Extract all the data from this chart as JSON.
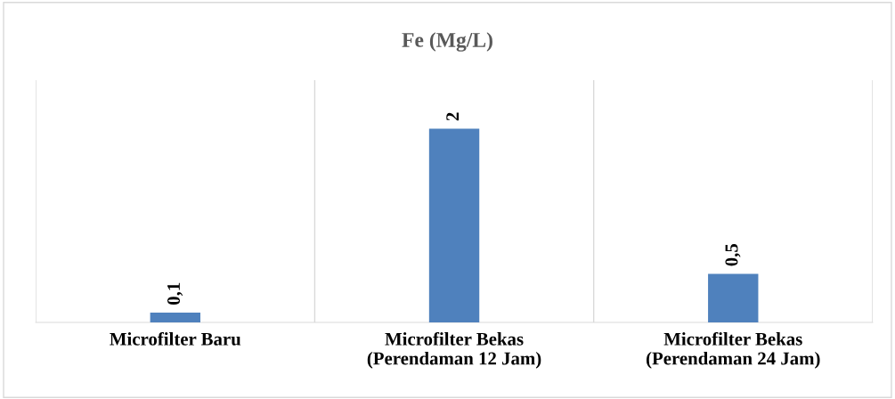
{
  "chart_data": {
    "type": "bar",
    "title": "Fe (Mg/L)",
    "categories": [
      "Microfilter Baru",
      "Microfilter Bekas\n(Perendaman 12 Jam)",
      "Microfilter Bekas\n(Perendaman 24 Jam)"
    ],
    "values": [
      0.1,
      2,
      0.5
    ],
    "color": "#4f81bd",
    "value_labels": [
      "0,1",
      "2",
      "0,5"
    ],
    "ylim": [
      0,
      2.5
    ],
    "grid": "x",
    "legend": false
  }
}
